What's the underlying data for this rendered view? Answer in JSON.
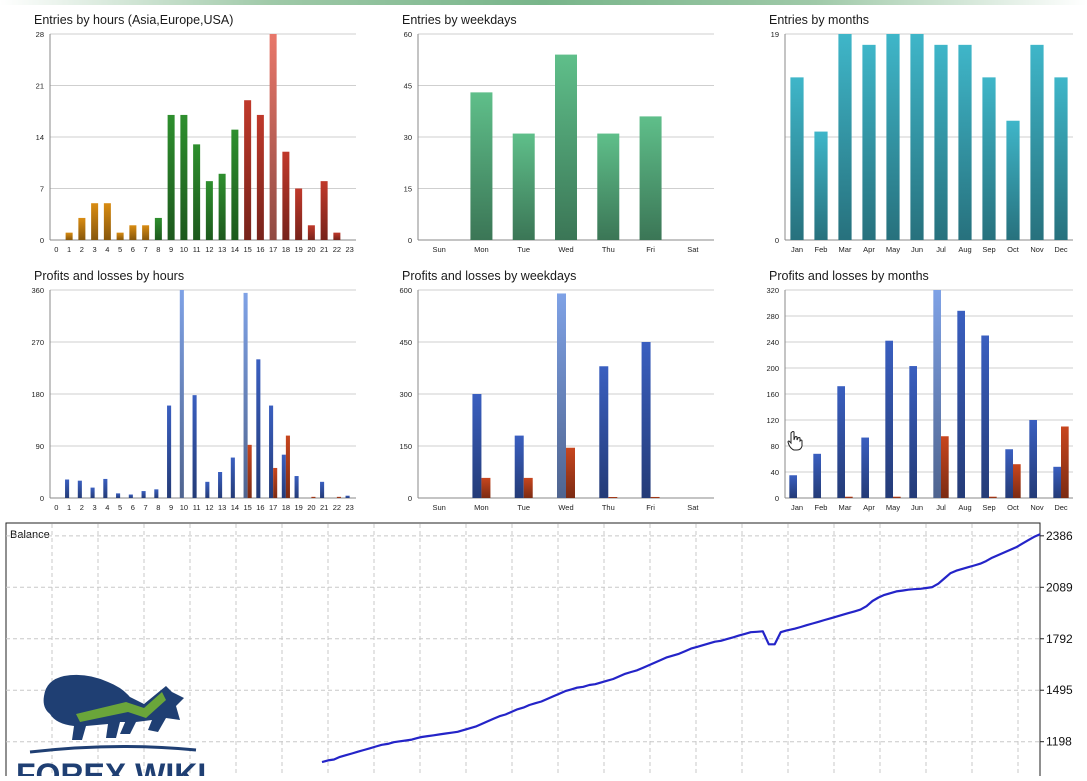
{
  "colors": {
    "orange": "#d98c12",
    "green": "#2e8f2e",
    "red": "#c0392b",
    "salmon": "#e8776a",
    "mint": "#5fbf8a",
    "teal": "#3fb6c9",
    "blue": "#3a5fc0",
    "lightblue": "#7fa2e6",
    "loss_red": "#c8461e",
    "balance_line": "#2424c8"
  },
  "chart_data": [
    {
      "id": "c1",
      "type": "bar",
      "title": "Entries by hours (Asia,Europe,USA)",
      "categories": [
        "0",
        "1",
        "2",
        "3",
        "4",
        "5",
        "6",
        "7",
        "8",
        "9",
        "10",
        "11",
        "12",
        "13",
        "14",
        "15",
        "16",
        "17",
        "18",
        "19",
        "20",
        "21",
        "22",
        "23"
      ],
      "values": [
        0,
        1,
        3,
        5,
        5,
        1,
        2,
        2,
        3,
        17,
        17,
        13,
        8,
        9,
        15,
        19,
        17,
        28,
        12,
        7,
        2,
        8,
        1,
        0
      ],
      "bar_colors": [
        "orange",
        "orange",
        "orange",
        "orange",
        "orange",
        "orange",
        "orange",
        "orange",
        "green",
        "green",
        "green",
        "green",
        "green",
        "green",
        "green",
        "red",
        "red",
        "salmon",
        "red",
        "red",
        "red",
        "red",
        "red",
        "red"
      ],
      "yticks": [
        "0",
        "7",
        "14",
        "21",
        "28"
      ],
      "ylim": [
        0,
        28
      ],
      "grid": true
    },
    {
      "id": "c2",
      "type": "bar",
      "title": "Entries by weekdays",
      "categories": [
        "Sun",
        "Mon",
        "Tue",
        "Wed",
        "Thu",
        "Fri",
        "Sat"
      ],
      "values": [
        0,
        43,
        31,
        54,
        31,
        36,
        0
      ],
      "bar_colors": [
        "mint",
        "mint",
        "mint",
        "mint",
        "mint",
        "mint",
        "mint"
      ],
      "yticks": [
        "0",
        "15",
        "30",
        "45",
        "60"
      ],
      "ylim": [
        0,
        60
      ],
      "grid": true
    },
    {
      "id": "c3",
      "type": "bar",
      "title": "Entries by months",
      "categories": [
        "Jan",
        "Feb",
        "Mar",
        "Apr",
        "May",
        "Jun",
        "Jul",
        "Aug",
        "Sep",
        "Oct",
        "Nov",
        "Dec"
      ],
      "values": [
        15,
        10,
        19,
        18,
        19,
        19,
        18,
        18,
        15,
        11,
        18,
        15
      ],
      "bar_colors": [
        "teal",
        "teal",
        "teal",
        "teal",
        "teal",
        "teal",
        "teal",
        "teal",
        "teal",
        "teal",
        "teal",
        "teal"
      ],
      "yticks": [
        "0",
        "",
        "19"
      ],
      "ylim": [
        0,
        19
      ],
      "grid": true
    },
    {
      "id": "c4",
      "type": "bar",
      "title": "Profits and losses by hours",
      "categories": [
        "0",
        "1",
        "2",
        "3",
        "4",
        "5",
        "6",
        "7",
        "8",
        "9",
        "10",
        "11",
        "12",
        "13",
        "14",
        "15",
        "16",
        "17",
        "18",
        "19",
        "20",
        "21",
        "22",
        "23"
      ],
      "series": [
        {
          "role": "profit",
          "values": [
            0,
            32,
            30,
            18,
            33,
            8,
            6,
            12,
            15,
            160,
            360,
            178,
            28,
            45,
            70,
            355,
            240,
            160,
            75,
            38,
            0,
            28,
            0,
            4
          ]
        },
        {
          "role": "loss",
          "values": [
            0,
            0,
            0,
            0,
            0,
            0,
            0,
            0,
            0,
            0,
            0,
            0,
            0,
            0,
            0,
            92,
            0,
            52,
            108,
            0,
            2,
            0,
            2,
            0
          ]
        }
      ],
      "highlight_profit": [
        10,
        15
      ],
      "yticks": [
        "0",
        "90",
        "180",
        "270",
        "360"
      ],
      "ylim": [
        0,
        360
      ],
      "grid": true
    },
    {
      "id": "c5",
      "type": "bar",
      "title": "Profits and losses by weekdays",
      "categories": [
        "Sun",
        "Mon",
        "Tue",
        "Wed",
        "Thu",
        "Fri",
        "Sat"
      ],
      "series": [
        {
          "role": "profit",
          "values": [
            0,
            300,
            180,
            590,
            380,
            450,
            0
          ]
        },
        {
          "role": "loss",
          "values": [
            0,
            58,
            58,
            145,
            2,
            3,
            0
          ]
        }
      ],
      "highlight_profit": [
        3
      ],
      "yticks": [
        "0",
        "150",
        "300",
        "450",
        "600"
      ],
      "ylim": [
        0,
        600
      ],
      "grid": true
    },
    {
      "id": "c6",
      "type": "bar",
      "title": "Profits and losses by months",
      "categories": [
        "Jan",
        "Feb",
        "Mar",
        "Apr",
        "May",
        "Jun",
        "Jul",
        "Aug",
        "Sep",
        "Oct",
        "Nov",
        "Dec"
      ],
      "series": [
        {
          "role": "profit",
          "values": [
            35,
            68,
            172,
            93,
            242,
            203,
            320,
            288,
            250,
            75,
            120,
            48
          ]
        },
        {
          "role": "loss",
          "values": [
            0,
            0,
            2,
            0,
            2,
            0,
            95,
            0,
            2,
            52,
            0,
            110
          ]
        }
      ],
      "highlight_profit": [
        6
      ],
      "yticks": [
        "0",
        "40",
        "80",
        "120",
        "160",
        "200",
        "240",
        "280",
        "320"
      ],
      "ylim": [
        0,
        320
      ],
      "grid": true
    },
    {
      "id": "balance",
      "type": "line",
      "title": "Balance",
      "yticks": [
        "1198",
        "1495",
        "1792",
        "2089",
        "2386"
      ],
      "ylim": [
        1000,
        2460
      ],
      "x": [
        0,
        6,
        12,
        18,
        24,
        30,
        36,
        42,
        48,
        54,
        60,
        66,
        72,
        78,
        84,
        90,
        96,
        100,
        106,
        112,
        118,
        124,
        130,
        136,
        142,
        148,
        154,
        160,
        166,
        172,
        178,
        184,
        190,
        196,
        202,
        208,
        214,
        220,
        226,
        232,
        238,
        244,
        250,
        256,
        262,
        268,
        274,
        280,
        286,
        292,
        298,
        304,
        310,
        316,
        322,
        328,
        334,
        340,
        346,
        352,
        358,
        364,
        370,
        376,
        382,
        388,
        394,
        400,
        406,
        412,
        418,
        424,
        430,
        436,
        442,
        448,
        454,
        460,
        466,
        470,
        474,
        480,
        486,
        492,
        498,
        504,
        510,
        516,
        522,
        528,
        534,
        540,
        546,
        552,
        558,
        564,
        570,
        576,
        582,
        588,
        594,
        600,
        606,
        612,
        618,
        624,
        630,
        636,
        642,
        648,
        654,
        660,
        666,
        672,
        678,
        684,
        690,
        696,
        702,
        708,
        714,
        720
      ],
      "values": [
        1080,
        1090,
        1095,
        1110,
        1120,
        1130,
        1140,
        1150,
        1160,
        1170,
        1180,
        1185,
        1195,
        1200,
        1205,
        1210,
        1220,
        1225,
        1230,
        1235,
        1240,
        1245,
        1250,
        1255,
        1265,
        1275,
        1285,
        1300,
        1315,
        1330,
        1345,
        1355,
        1370,
        1385,
        1395,
        1410,
        1420,
        1430,
        1445,
        1460,
        1475,
        1490,
        1500,
        1510,
        1515,
        1525,
        1530,
        1540,
        1550,
        1560,
        1575,
        1590,
        1600,
        1610,
        1625,
        1640,
        1655,
        1670,
        1685,
        1695,
        1705,
        1720,
        1735,
        1745,
        1755,
        1765,
        1775,
        1780,
        1790,
        1800,
        1810,
        1820,
        1830,
        1832,
        1835,
        1760,
        1760,
        1830,
        1840,
        1845,
        1850,
        1860,
        1870,
        1880,
        1890,
        1900,
        1910,
        1920,
        1930,
        1940,
        1950,
        1960,
        1980,
        2010,
        2030,
        2045,
        2055,
        2065,
        2070,
        2075,
        2078,
        2080,
        2085,
        2090,
        2110,
        2140,
        2170,
        2185,
        2195,
        2205,
        2215,
        2225,
        2240,
        2260,
        2275,
        2290,
        2305,
        2320,
        2340,
        2360,
        2380,
        2395
      ]
    }
  ],
  "logo": {
    "text": "FOREX WIKI"
  }
}
